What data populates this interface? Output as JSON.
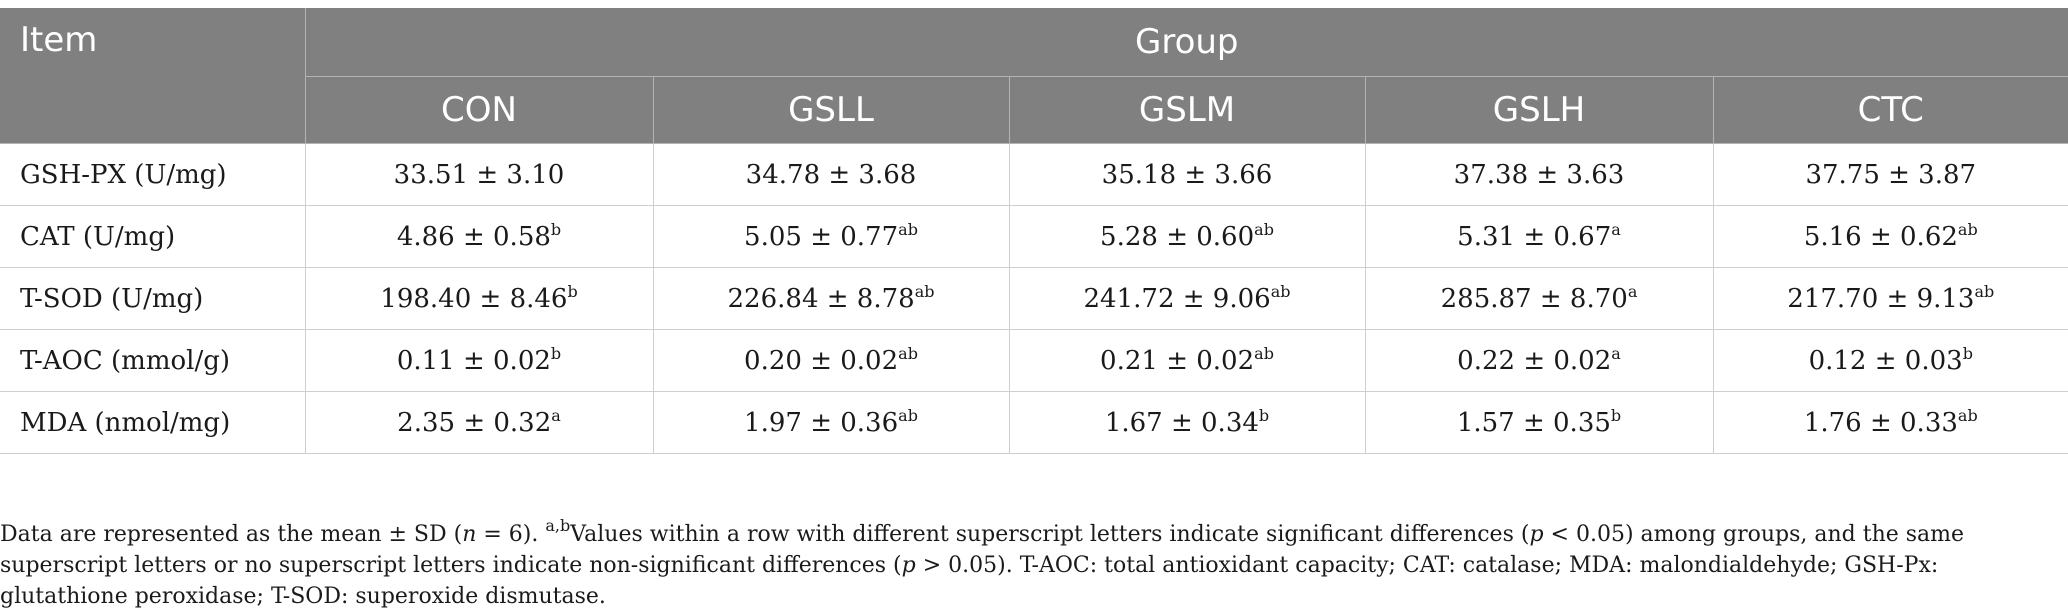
{
  "table": {
    "header": {
      "item": "Item",
      "group": "Group",
      "groups": [
        "CON",
        "GSLL",
        "GSLM",
        "GSLH",
        "CTC"
      ]
    },
    "rows": [
      {
        "item": "GSH-PX (U/mg)",
        "cells": [
          {
            "value": "33.51 ± 3.10",
            "sup": ""
          },
          {
            "value": "34.78 ± 3.68",
            "sup": ""
          },
          {
            "value": "35.18 ± 3.66",
            "sup": ""
          },
          {
            "value": "37.38 ± 3.63",
            "sup": ""
          },
          {
            "value": "37.75 ± 3.87",
            "sup": ""
          }
        ]
      },
      {
        "item": "CAT (U/mg)",
        "cells": [
          {
            "value": "4.86 ± 0.58",
            "sup": "b"
          },
          {
            "value": "5.05 ± 0.77",
            "sup": "ab"
          },
          {
            "value": "5.28 ± 0.60",
            "sup": "ab"
          },
          {
            "value": "5.31 ± 0.67",
            "sup": "a"
          },
          {
            "value": "5.16 ± 0.62",
            "sup": "ab"
          }
        ]
      },
      {
        "item": "T-SOD (U/mg)",
        "cells": [
          {
            "value": "198.40 ± 8.46",
            "sup": "b"
          },
          {
            "value": "226.84 ± 8.78",
            "sup": "ab"
          },
          {
            "value": "241.72 ± 9.06",
            "sup": "ab"
          },
          {
            "value": "285.87 ± 8.70",
            "sup": "a"
          },
          {
            "value": "217.70 ± 9.13",
            "sup": "ab"
          }
        ]
      },
      {
        "item": "T-AOC (mmol/g)",
        "cells": [
          {
            "value": "0.11 ± 0.02",
            "sup": "b"
          },
          {
            "value": "0.20 ± 0.02",
            "sup": "ab"
          },
          {
            "value": "0.21 ± 0.02",
            "sup": "ab"
          },
          {
            "value": "0.22 ± 0.02",
            "sup": "a"
          },
          {
            "value": "0.12 ± 0.03",
            "sup": "b"
          }
        ]
      },
      {
        "item": "MDA (nmol/mg)",
        "cells": [
          {
            "value": "2.35 ± 0.32",
            "sup": "a"
          },
          {
            "value": "1.97 ± 0.36",
            "sup": "ab"
          },
          {
            "value": "1.67 ± 0.34",
            "sup": "b"
          },
          {
            "value": "1.57 ± 0.35",
            "sup": "b"
          },
          {
            "value": "1.76 ± 0.33",
            "sup": "ab"
          }
        ]
      }
    ]
  },
  "footnote": {
    "p1": "Data are represented as the mean ± SD (",
    "n_var": "n",
    "p2": " = 6). ",
    "sup": "a,b",
    "p3": "Values within a row with different superscript letters indicate significant differences (",
    "p_var1": "p",
    "p4": " < 0.05) among groups, and the same superscript letters or no superscript letters indicate non-significant differences (",
    "p_var2": "p",
    "p5": " > 0.05). T-AOC: total antioxidant capacity; CAT: catalase; MDA: malondialdehyde; GSH-Px: glutathione peroxidase; T-SOD: superoxide dismutase."
  }
}
